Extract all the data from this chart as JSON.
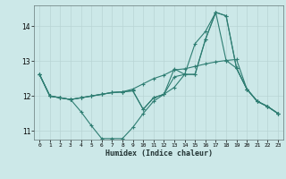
{
  "xlabel": "Humidex (Indice chaleur)",
  "bg_color": "#cce8e8",
  "line_color": "#2e7d72",
  "grid_color": "#b8d4d4",
  "xlim": [
    -0.5,
    23.5
  ],
  "ylim": [
    10.75,
    14.6
  ],
  "yticks": [
    11,
    12,
    13,
    14
  ],
  "xticks": [
    0,
    1,
    2,
    3,
    4,
    5,
    6,
    7,
    8,
    9,
    10,
    11,
    12,
    13,
    14,
    15,
    16,
    17,
    18,
    19,
    20,
    21,
    22,
    23
  ],
  "lines": [
    [
      12.62,
      12.0,
      11.95,
      11.9,
      11.55,
      11.15,
      10.78,
      10.78,
      10.78,
      11.1,
      11.5,
      11.85,
      12.05,
      12.55,
      12.62,
      13.5,
      13.85,
      14.4,
      14.3,
      12.8,
      12.2,
      11.85,
      11.7,
      11.5
    ],
    [
      12.62,
      12.0,
      11.95,
      11.9,
      11.95,
      12.0,
      12.05,
      12.1,
      12.12,
      12.2,
      12.35,
      12.5,
      12.6,
      12.75,
      12.78,
      12.85,
      12.92,
      12.98,
      13.02,
      13.05,
      12.2,
      11.85,
      11.7,
      11.5
    ],
    [
      12.62,
      12.0,
      11.95,
      11.9,
      11.95,
      12.0,
      12.05,
      12.1,
      12.12,
      12.15,
      11.62,
      11.95,
      12.05,
      12.78,
      12.62,
      12.62,
      13.62,
      14.4,
      14.3,
      12.8,
      12.2,
      11.85,
      11.7,
      11.5
    ],
    [
      12.62,
      12.0,
      11.95,
      11.9,
      11.95,
      12.0,
      12.05,
      12.1,
      12.12,
      12.15,
      11.62,
      11.95,
      12.05,
      12.25,
      12.62,
      12.62,
      13.62,
      14.4,
      13.02,
      12.8,
      12.2,
      11.85,
      11.7,
      11.5
    ]
  ]
}
